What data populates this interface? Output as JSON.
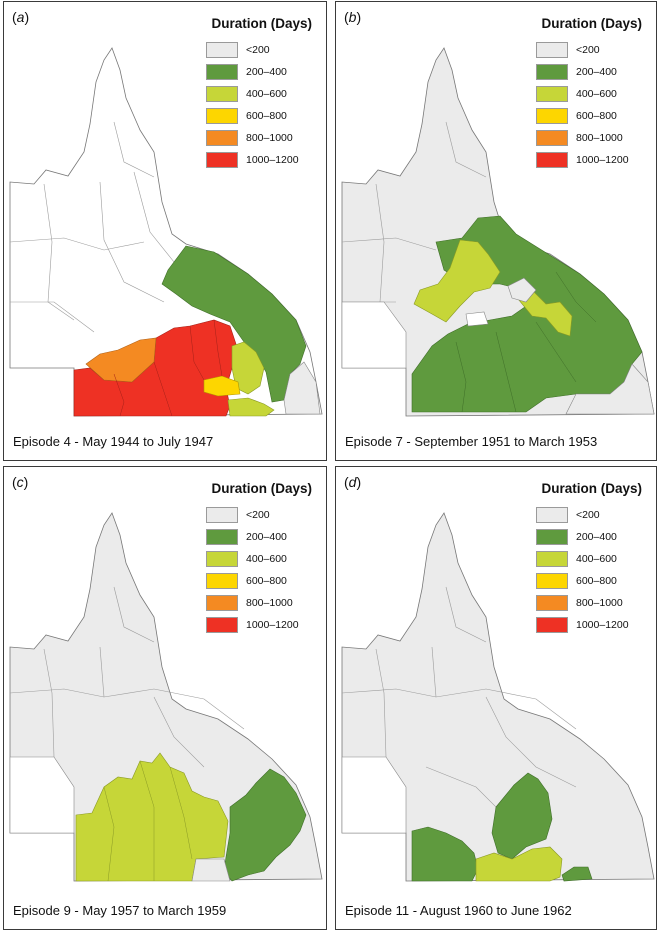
{
  "legend": {
    "title": "Duration (Days)",
    "items": [
      {
        "label": "<200",
        "color": "#ebebeb"
      },
      {
        "label": "200–400",
        "color": "#5f9a3e"
      },
      {
        "label": "400–600",
        "color": "#c6d638"
      },
      {
        "label": "600–800",
        "color": "#fdd600"
      },
      {
        "label": "800–1000",
        "color": "#f48a22"
      },
      {
        "label": "1000–1200",
        "color": "#ee3124"
      }
    ]
  },
  "panels": [
    {
      "letter": "a",
      "caption": "Episode 4 - May 1944 to July 1947"
    },
    {
      "letter": "b",
      "caption": "Episode 7 - September 1951 to March 1953"
    },
    {
      "letter": "c",
      "caption": "Episode 9 - May 1957 to March 1959"
    },
    {
      "letter": "d",
      "caption": "Episode 11 - August 1960 to June 1962"
    }
  ]
}
